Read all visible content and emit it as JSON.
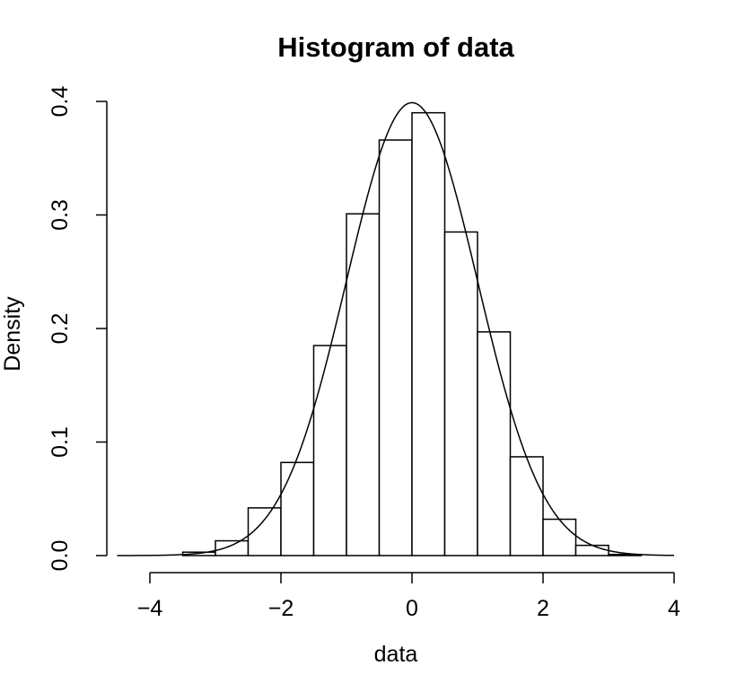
{
  "chart_data": {
    "type": "bar",
    "title": "Histogram of data",
    "xlabel": "data",
    "ylabel": "Density",
    "xlim": [
      -4,
      4
    ],
    "ylim": [
      0,
      0.4
    ],
    "x_ticks": [
      -4,
      -2,
      0,
      2,
      4
    ],
    "x_tick_labels": [
      "−4",
      "−2",
      "0",
      "2",
      "4"
    ],
    "y_ticks": [
      0,
      0.1,
      0.2,
      0.3,
      0.4
    ],
    "y_tick_labels": [
      "0.0",
      "0.1",
      "0.2",
      "0.3",
      "0.4"
    ],
    "bins": [
      {
        "start": -4.5,
        "end": -4.0,
        "density": 0.0
      },
      {
        "start": -4.0,
        "end": -3.5,
        "density": 0.0
      },
      {
        "start": -3.5,
        "end": -3.0,
        "density": 0.003
      },
      {
        "start": -3.0,
        "end": -2.5,
        "density": 0.013
      },
      {
        "start": -2.5,
        "end": -2.0,
        "density": 0.042
      },
      {
        "start": -2.0,
        "end": -1.5,
        "density": 0.082
      },
      {
        "start": -1.5,
        "end": -1.0,
        "density": 0.185
      },
      {
        "start": -1.0,
        "end": -0.5,
        "density": 0.301
      },
      {
        "start": -0.5,
        "end": 0.0,
        "density": 0.366
      },
      {
        "start": 0.0,
        "end": 0.5,
        "density": 0.39
      },
      {
        "start": 0.5,
        "end": 1.0,
        "density": 0.285
      },
      {
        "start": 1.0,
        "end": 1.5,
        "density": 0.197
      },
      {
        "start": 1.5,
        "end": 2.0,
        "density": 0.087
      },
      {
        "start": 2.0,
        "end": 2.5,
        "density": 0.032
      },
      {
        "start": 2.5,
        "end": 3.0,
        "density": 0.009
      },
      {
        "start": 3.0,
        "end": 3.5,
        "density": 0.001
      },
      {
        "start": 3.5,
        "end": 4.0,
        "density": 0.0
      }
    ],
    "overlay_curve": {
      "type": "normal-density",
      "mean": 0,
      "sd": 1
    },
    "grid": false,
    "colors": {
      "bar_fill": "#ffffff",
      "stroke": "#000000"
    }
  }
}
